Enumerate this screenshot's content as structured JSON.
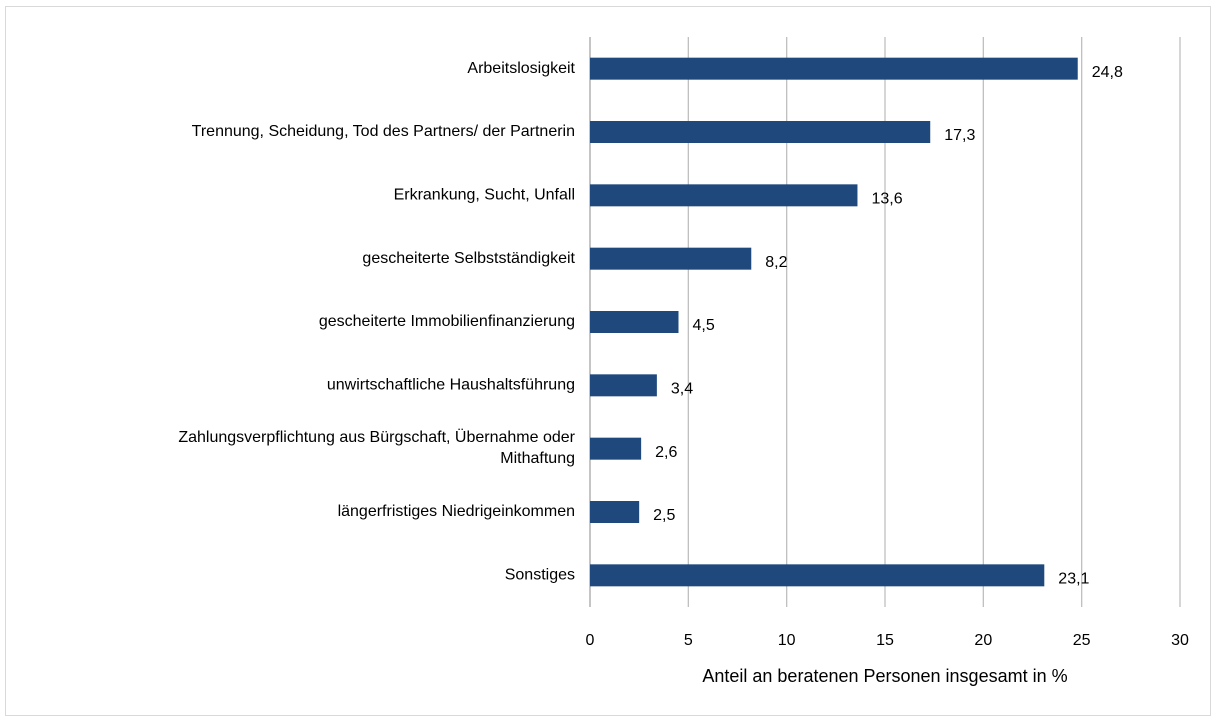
{
  "chart_data": {
    "type": "hbar",
    "categories": [
      "Arbeitslosigkeit",
      "Trennung, Scheidung, Tod des Partners/ der Partnerin",
      "Erkrankung, Sucht, Unfall",
      "gescheiterte Selbstständigkeit",
      "gescheiterte Immobilienfinanzierung",
      "unwirtschaftliche Haushaltsführung",
      "Zahlungsverpflichtung aus Bürgschaft, Übernahme oder Mithaftung",
      "längerfristiges Niedrigeinkommen",
      "Sonstiges"
    ],
    "values": [
      24.8,
      17.3,
      13.6,
      8.2,
      4.5,
      3.4,
      2.6,
      2.5,
      23.1
    ],
    "value_labels": [
      "24,8",
      "17,3",
      "13,6",
      "8,2",
      "4,5",
      "3,4",
      "2,6",
      "2,5",
      "23,1"
    ],
    "color": "#1f497d",
    "xlabel": "Anteil an beratenen Personen insgesamt in %",
    "xlim": [
      0,
      30
    ],
    "xticks": [
      0,
      5,
      10,
      15,
      20,
      25,
      30
    ],
    "grid": true
  }
}
